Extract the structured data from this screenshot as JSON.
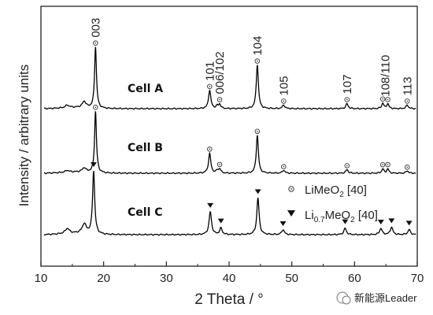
{
  "chart_data": {
    "type": "line",
    "xlabel": "2 Theta / °",
    "ylabel": "Intensity / arbitrary units",
    "xlim": [
      10,
      70
    ],
    "xticks": [
      "10",
      "20",
      "30",
      "40",
      "50",
      "60",
      "70"
    ],
    "grid": false,
    "series": [
      {
        "name": "Cell A",
        "color": "#000000",
        "baseline": 0,
        "peaks": [
          {
            "x": 14.2,
            "h": 0.04,
            "w": 0.35
          },
          {
            "x": 16.9,
            "h": 0.1,
            "w": 0.35
          },
          {
            "x": 18.7,
            "h": 1.0,
            "w": 0.18
          },
          {
            "x": 36.9,
            "h": 0.3,
            "w": 0.22
          },
          {
            "x": 38.1,
            "h": 0.04,
            "w": 0.2
          },
          {
            "x": 38.5,
            "h": 0.07,
            "w": 0.2
          },
          {
            "x": 44.5,
            "h": 0.72,
            "w": 0.2
          },
          {
            "x": 48.7,
            "h": 0.06,
            "w": 0.22
          },
          {
            "x": 58.8,
            "h": 0.08,
            "w": 0.22
          },
          {
            "x": 64.5,
            "h": 0.09,
            "w": 0.2
          },
          {
            "x": 65.3,
            "h": 0.08,
            "w": 0.2
          },
          {
            "x": 68.4,
            "h": 0.06,
            "w": 0.22
          }
        ]
      },
      {
        "name": "Cell B",
        "color": "#000000",
        "baseline": 1,
        "peaks": [
          {
            "x": 14.2,
            "h": 0.03,
            "w": 0.35
          },
          {
            "x": 16.9,
            "h": 0.07,
            "w": 0.35
          },
          {
            "x": 18.7,
            "h": 1.0,
            "w": 0.18
          },
          {
            "x": 36.9,
            "h": 0.32,
            "w": 0.22
          },
          {
            "x": 38.1,
            "h": 0.04,
            "w": 0.2
          },
          {
            "x": 38.5,
            "h": 0.07,
            "w": 0.2
          },
          {
            "x": 44.5,
            "h": 0.62,
            "w": 0.2
          },
          {
            "x": 48.7,
            "h": 0.05,
            "w": 0.22
          },
          {
            "x": 58.8,
            "h": 0.06,
            "w": 0.22
          },
          {
            "x": 64.5,
            "h": 0.07,
            "w": 0.2
          },
          {
            "x": 65.3,
            "h": 0.07,
            "w": 0.2
          },
          {
            "x": 68.4,
            "h": 0.04,
            "w": 0.22
          }
        ]
      },
      {
        "name": "Cell C",
        "color": "#000000",
        "baseline": 2,
        "peaks": [
          {
            "x": 14.2,
            "h": 0.08,
            "w": 0.4
          },
          {
            "x": 16.9,
            "h": 0.15,
            "w": 0.4
          },
          {
            "x": 18.4,
            "h": 1.0,
            "w": 0.2
          },
          {
            "x": 37.0,
            "h": 0.36,
            "w": 0.24
          },
          {
            "x": 38.7,
            "h": 0.1,
            "w": 0.24
          },
          {
            "x": 44.6,
            "h": 0.58,
            "w": 0.22
          },
          {
            "x": 48.6,
            "h": 0.08,
            "w": 0.24
          },
          {
            "x": 58.5,
            "h": 0.1,
            "w": 0.24
          },
          {
            "x": 64.2,
            "h": 0.1,
            "w": 0.24
          },
          {
            "x": 65.9,
            "h": 0.12,
            "w": 0.24
          },
          {
            "x": 68.7,
            "h": 0.08,
            "w": 0.24
          }
        ]
      }
    ],
    "peak_labels": [
      {
        "text": "003",
        "x": 18.7
      },
      {
        "text": "101",
        "x": 36.9
      },
      {
        "text": "006/102",
        "x": 38.5
      },
      {
        "text": "104",
        "x": 44.5
      },
      {
        "text": "105",
        "x": 48.7
      },
      {
        "text": "107",
        "x": 58.8
      },
      {
        "text": "108/110",
        "x": 64.9
      },
      {
        "text": "113",
        "x": 68.4
      }
    ],
    "circle_markers": {
      "Cell A": [
        18.7,
        36.9,
        38.5,
        44.5,
        48.7,
        58.8,
        64.5,
        65.3,
        68.4
      ],
      "Cell B": [
        18.7,
        36.9,
        38.5,
        44.5,
        48.7,
        58.8,
        64.5,
        65.3,
        68.4
      ]
    },
    "triangle_markers": {
      "Cell C": [
        18.4,
        37.0,
        38.7,
        44.6,
        48.6,
        58.5,
        64.2,
        65.9,
        68.7
      ]
    },
    "legend": [
      {
        "symbol": "circle",
        "label_main": "LiMeO",
        "label_sub": "2",
        "label_tail": " [40]"
      },
      {
        "symbol": "triangle",
        "label_main": "Li",
        "label_sub": "0.7",
        "label_mid": "MeO",
        "label_sub2": "2",
        "label_tail": " [40]"
      }
    ]
  },
  "watermark": "新能源Leader"
}
